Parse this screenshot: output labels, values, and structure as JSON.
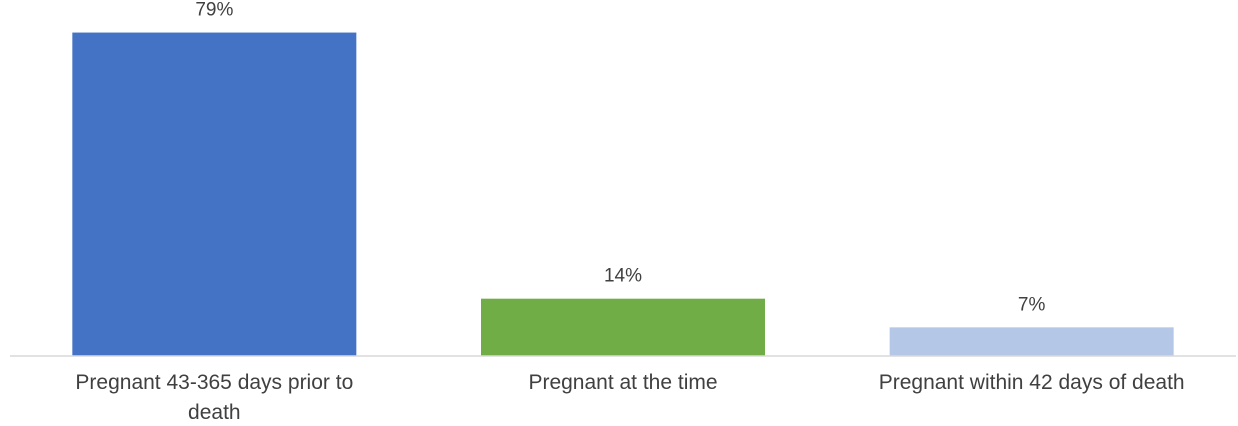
{
  "chart_data": {
    "type": "bar",
    "categories": [
      "Pregnant 43-365 days prior to death",
      "Pregnant at the time",
      "Pregnant within 42 days of death"
    ],
    "values": [
      79,
      14,
      7
    ],
    "value_labels": [
      "79%",
      "14%",
      "7%"
    ],
    "bar_colors": [
      "#4472c4",
      "#70ad47",
      "#b4c7e7"
    ],
    "ylim": [
      0,
      85
    ],
    "grid": false,
    "legend": "none",
    "title": "",
    "xlabel": "",
    "ylabel": ""
  },
  "colors": {
    "axis_line": "#d9d9d9",
    "text": "#404040"
  }
}
